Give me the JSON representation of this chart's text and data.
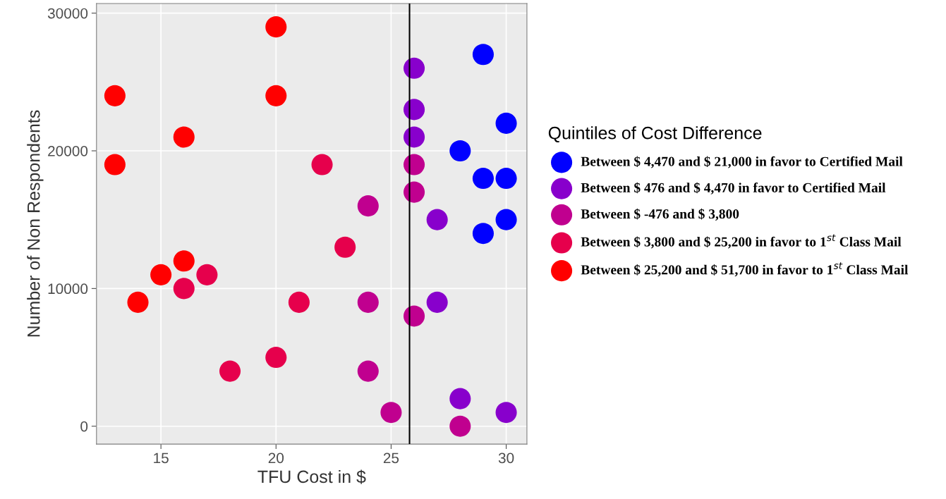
{
  "chart_data": {
    "type": "scatter",
    "xlabel": "TFU Cost in $",
    "ylabel": "Number of Non Respondents",
    "legend_title": "Quintiles of Cost Difference",
    "legend": "right",
    "grid": true,
    "marker": "circle",
    "xlim": [
      12.2,
      30.9
    ],
    "xticks": [
      15,
      20,
      25,
      30
    ],
    "ylim": [
      -1300,
      30700
    ],
    "yticks": [
      0,
      10000,
      20000,
      30000
    ],
    "ref_lines": [
      {
        "axis": "x",
        "value": 25.8,
        "color": "#000000",
        "line_style": "solid"
      }
    ],
    "series": [
      {
        "name": "Between $ 4,470 and $ 21,000 in favor to Certified Mail",
        "color": "#0000ff",
        "x": [
          29,
          30,
          28,
          29,
          30,
          29,
          30
        ],
        "values": [
          27000,
          22000,
          20000,
          18000,
          18000,
          14000,
          15000
        ]
      },
      {
        "name": "Between $ 476 and $ 4,470 in favor to Certified Mail",
        "color": "#8800cc",
        "x": [
          26,
          26,
          26,
          27,
          27,
          28,
          30
        ],
        "values": [
          26000,
          23000,
          21000,
          15000,
          9000,
          2000,
          1000
        ]
      },
      {
        "name": "Between $ -476 and $ 3,800",
        "color": "#c0008f",
        "x": [
          24,
          24,
          24,
          25,
          26,
          26,
          26,
          28
        ],
        "values": [
          16000,
          9000,
          4000,
          1000,
          19000,
          17000,
          8000,
          0
        ]
      },
      {
        "name": "Between $ 3,800 and $ 25,200 in favor to 1$^{st}$ Class Mail",
        "color": "#e6004c",
        "x": [
          22,
          16,
          17,
          18,
          20,
          21,
          23
        ],
        "values": [
          19000,
          10000,
          11000,
          4000,
          5000,
          9000,
          13000
        ]
      },
      {
        "name": "Between $ 25,200 and $ 51,700 in favor to 1$^{st}$ Class Mail",
        "color": "#ff0000",
        "x": [
          13,
          13,
          16,
          20,
          20,
          14,
          15,
          16
        ],
        "values": [
          24000,
          19000,
          21000,
          29000,
          24000,
          9000,
          11000,
          12000
        ]
      }
    ]
  }
}
